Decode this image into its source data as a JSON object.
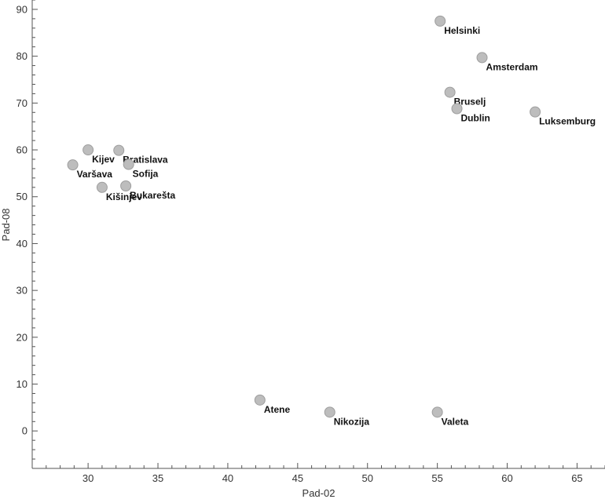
{
  "chart_data": {
    "type": "scatter",
    "title": "",
    "xlabel": "Pad-02",
    "ylabel": "Pad-08",
    "xlim": [
      26,
      67
    ],
    "ylim": [
      -8,
      92
    ],
    "x_ticks": [
      30,
      35,
      40,
      45,
      50,
      55,
      60,
      65
    ],
    "y_ticks": [
      0,
      10,
      20,
      30,
      40,
      50,
      60,
      70,
      80,
      90
    ],
    "grid": false,
    "legend": "none",
    "marker_color": "#bdbdbd",
    "marker_edge": "#9e9e9e",
    "points": [
      {
        "label": "Helsinki",
        "x": 55.2,
        "y": 87.5
      },
      {
        "label": "Amsterdam",
        "x": 58.2,
        "y": 79.7
      },
      {
        "label": "Bruselj",
        "x": 55.9,
        "y": 72.3
      },
      {
        "label": "Dublin",
        "x": 56.4,
        "y": 68.8
      },
      {
        "label": "Luksemburg",
        "x": 62.0,
        "y": 68.1
      },
      {
        "label": "Kijev",
        "x": 30.0,
        "y": 60.0
      },
      {
        "label": "Bratislava",
        "x": 32.2,
        "y": 59.9
      },
      {
        "label": "Varšava",
        "x": 28.9,
        "y": 56.8
      },
      {
        "label": "Sofija",
        "x": 32.9,
        "y": 56.9
      },
      {
        "label": "Kišinjev",
        "x": 31.0,
        "y": 52.0
      },
      {
        "label": "Bukarešta",
        "x": 32.7,
        "y": 52.3
      },
      {
        "label": "Atene",
        "x": 42.3,
        "y": 6.6
      },
      {
        "label": "Nikozija",
        "x": 47.3,
        "y": 4.0
      },
      {
        "label": "Valeta",
        "x": 55.0,
        "y": 4.0
      }
    ]
  }
}
